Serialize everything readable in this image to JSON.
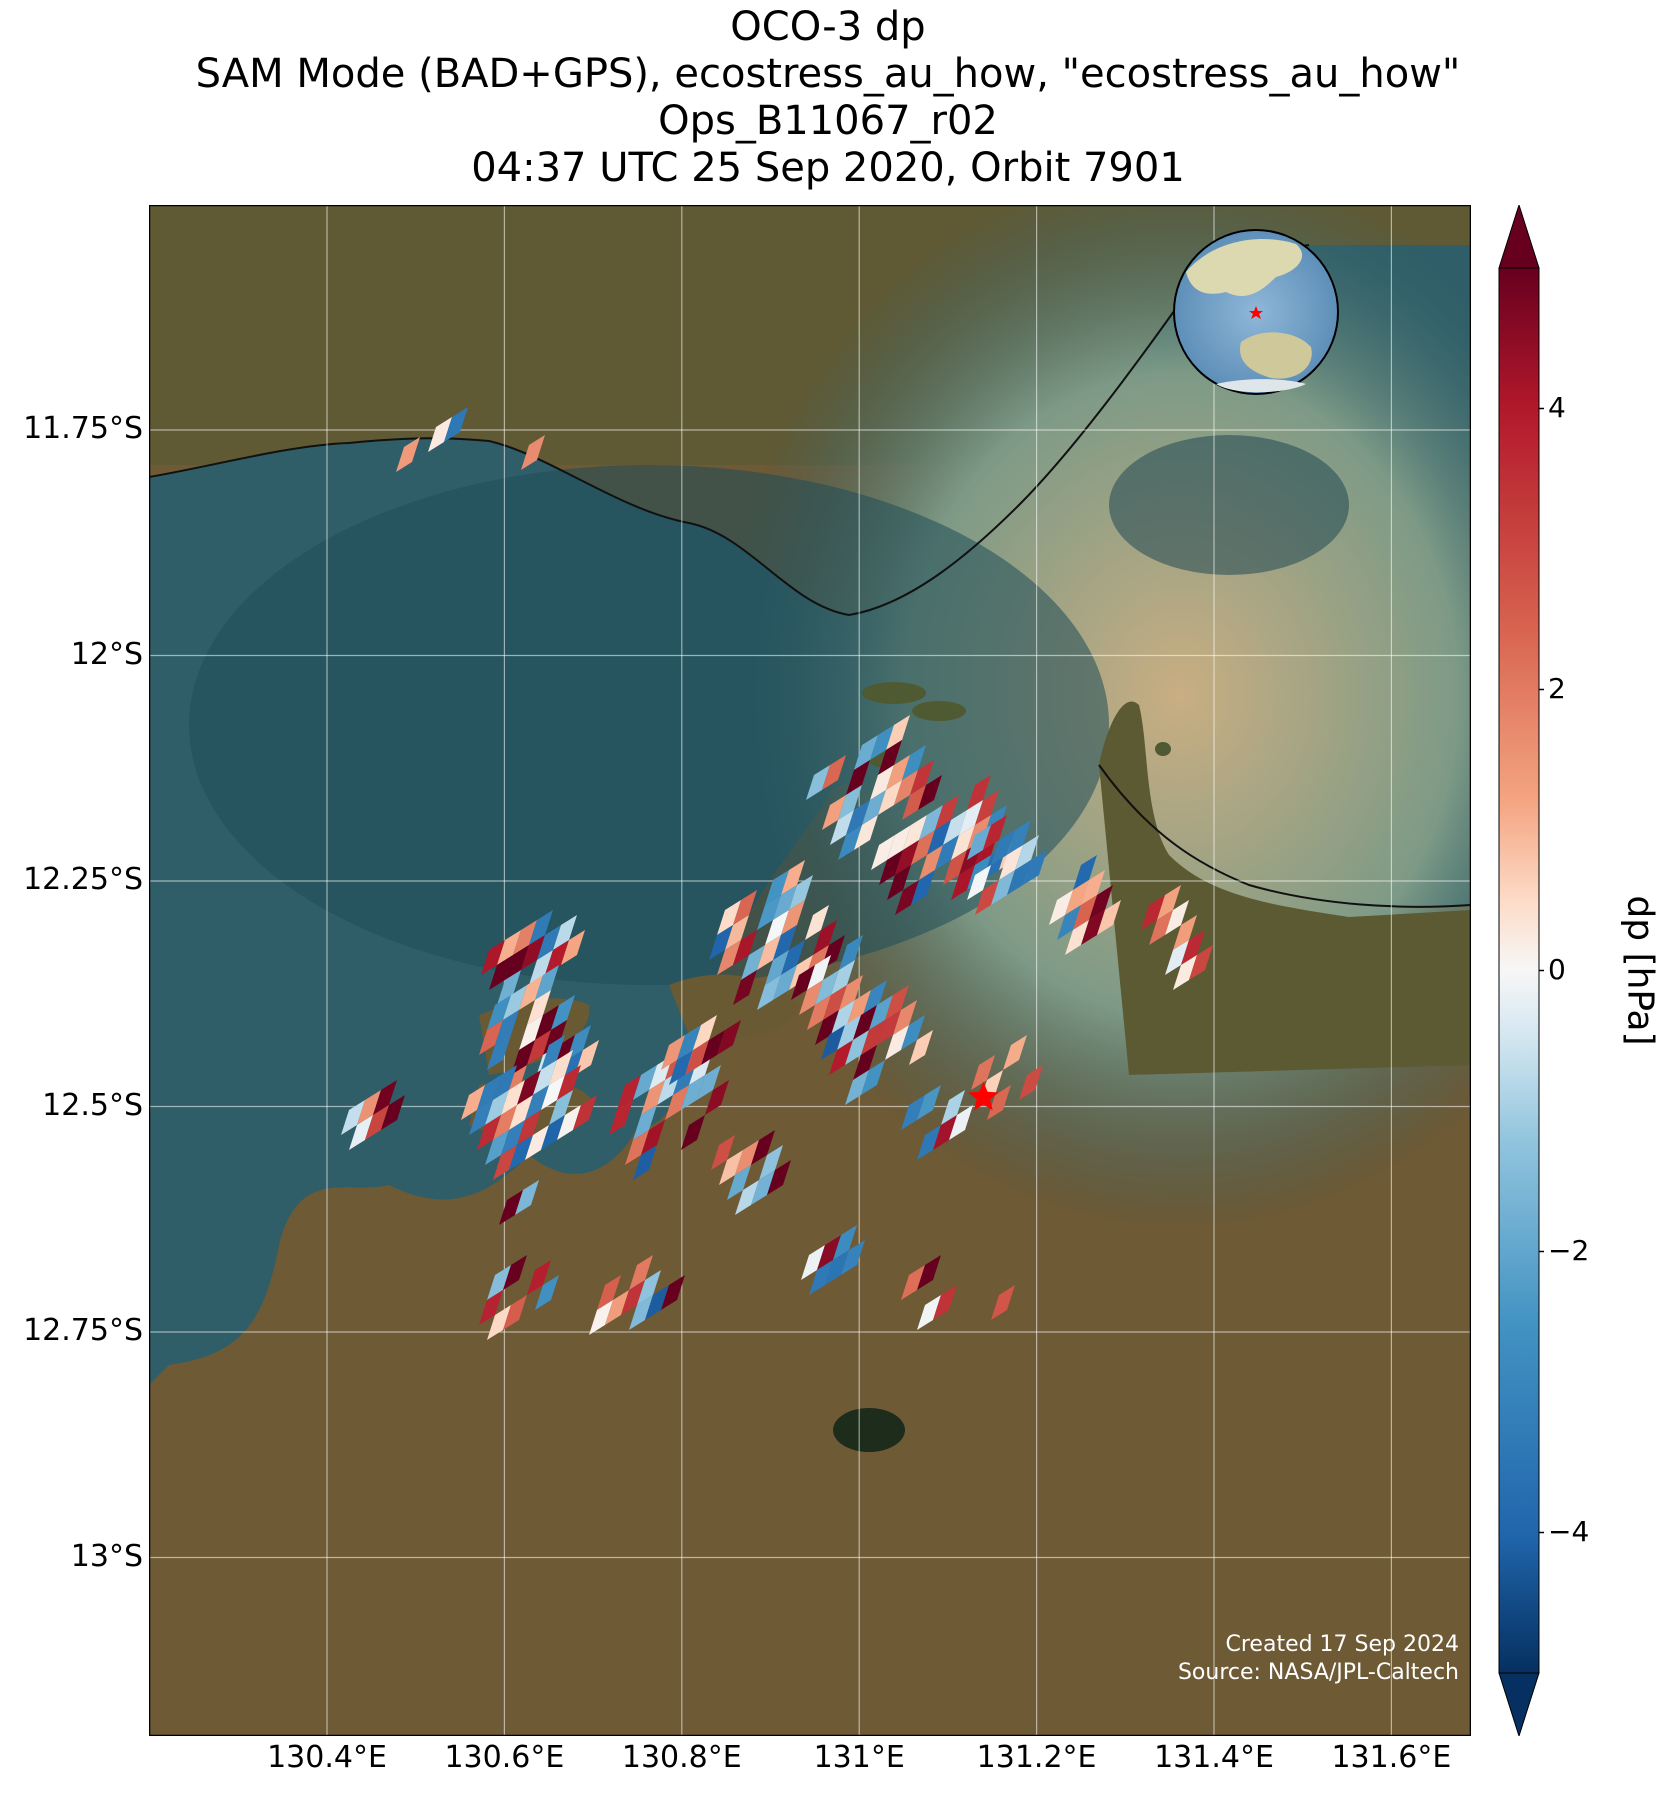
{
  "title": {
    "line1": "OCO-3 dp",
    "line2": "SAM Mode (BAD+GPS), ecostress_au_how, \"ecostress_au_how\"",
    "line3": "Ops_B11067_r02",
    "line4": "04:37 UTC 25 Sep 2020, Orbit 7901"
  },
  "axes": {
    "lat_ticks": [
      {
        "label": "11.75°S",
        "lat": -11.75
      },
      {
        "label": "12°S",
        "lat": -12.0
      },
      {
        "label": "12.25°S",
        "lat": -12.25
      },
      {
        "label": "12.5°S",
        "lat": -12.5
      },
      {
        "label": "12.75°S",
        "lat": -12.75
      },
      {
        "label": "13°S",
        "lat": -13.0
      }
    ],
    "lon_ticks": [
      {
        "label": "130.4°E",
        "lon": 130.4
      },
      {
        "label": "130.6°E",
        "lon": 130.6
      },
      {
        "label": "130.8°E",
        "lon": 130.8
      },
      {
        "label": "131°E",
        "lon": 131.0
      },
      {
        "label": "131.2°E",
        "lon": 131.2
      },
      {
        "label": "131.4°E",
        "lon": 131.4
      },
      {
        "label": "131.6°E",
        "lon": 131.6
      }
    ],
    "lon_range": [
      130.2,
      131.7
    ],
    "lat_range": [
      -13.2,
      -11.5
    ],
    "grid": true
  },
  "colorbar": {
    "label": "dp [hPa]",
    "colormap": "RdBu_r",
    "range": [
      -5,
      5
    ],
    "extend": "both",
    "ticks": [
      {
        "label": "4",
        "value": 4
      },
      {
        "label": "2",
        "value": 2
      },
      {
        "label": "0",
        "value": 0
      },
      {
        "label": "−2",
        "value": -2
      },
      {
        "label": "−4",
        "value": -4
      }
    ]
  },
  "target": {
    "lon": 131.14,
    "lat": -12.49,
    "color": "#ff0000"
  },
  "inset_globe": {
    "marker_color": "#ff0000"
  },
  "footer": {
    "created": "Created 17 Sep 2024",
    "source": "Source: NASA/JPL-Caltech"
  },
  "colors": {
    "ocean": "#2f5e68",
    "ocean_light": "#b9a584",
    "land": "#6e5a35"
  }
}
